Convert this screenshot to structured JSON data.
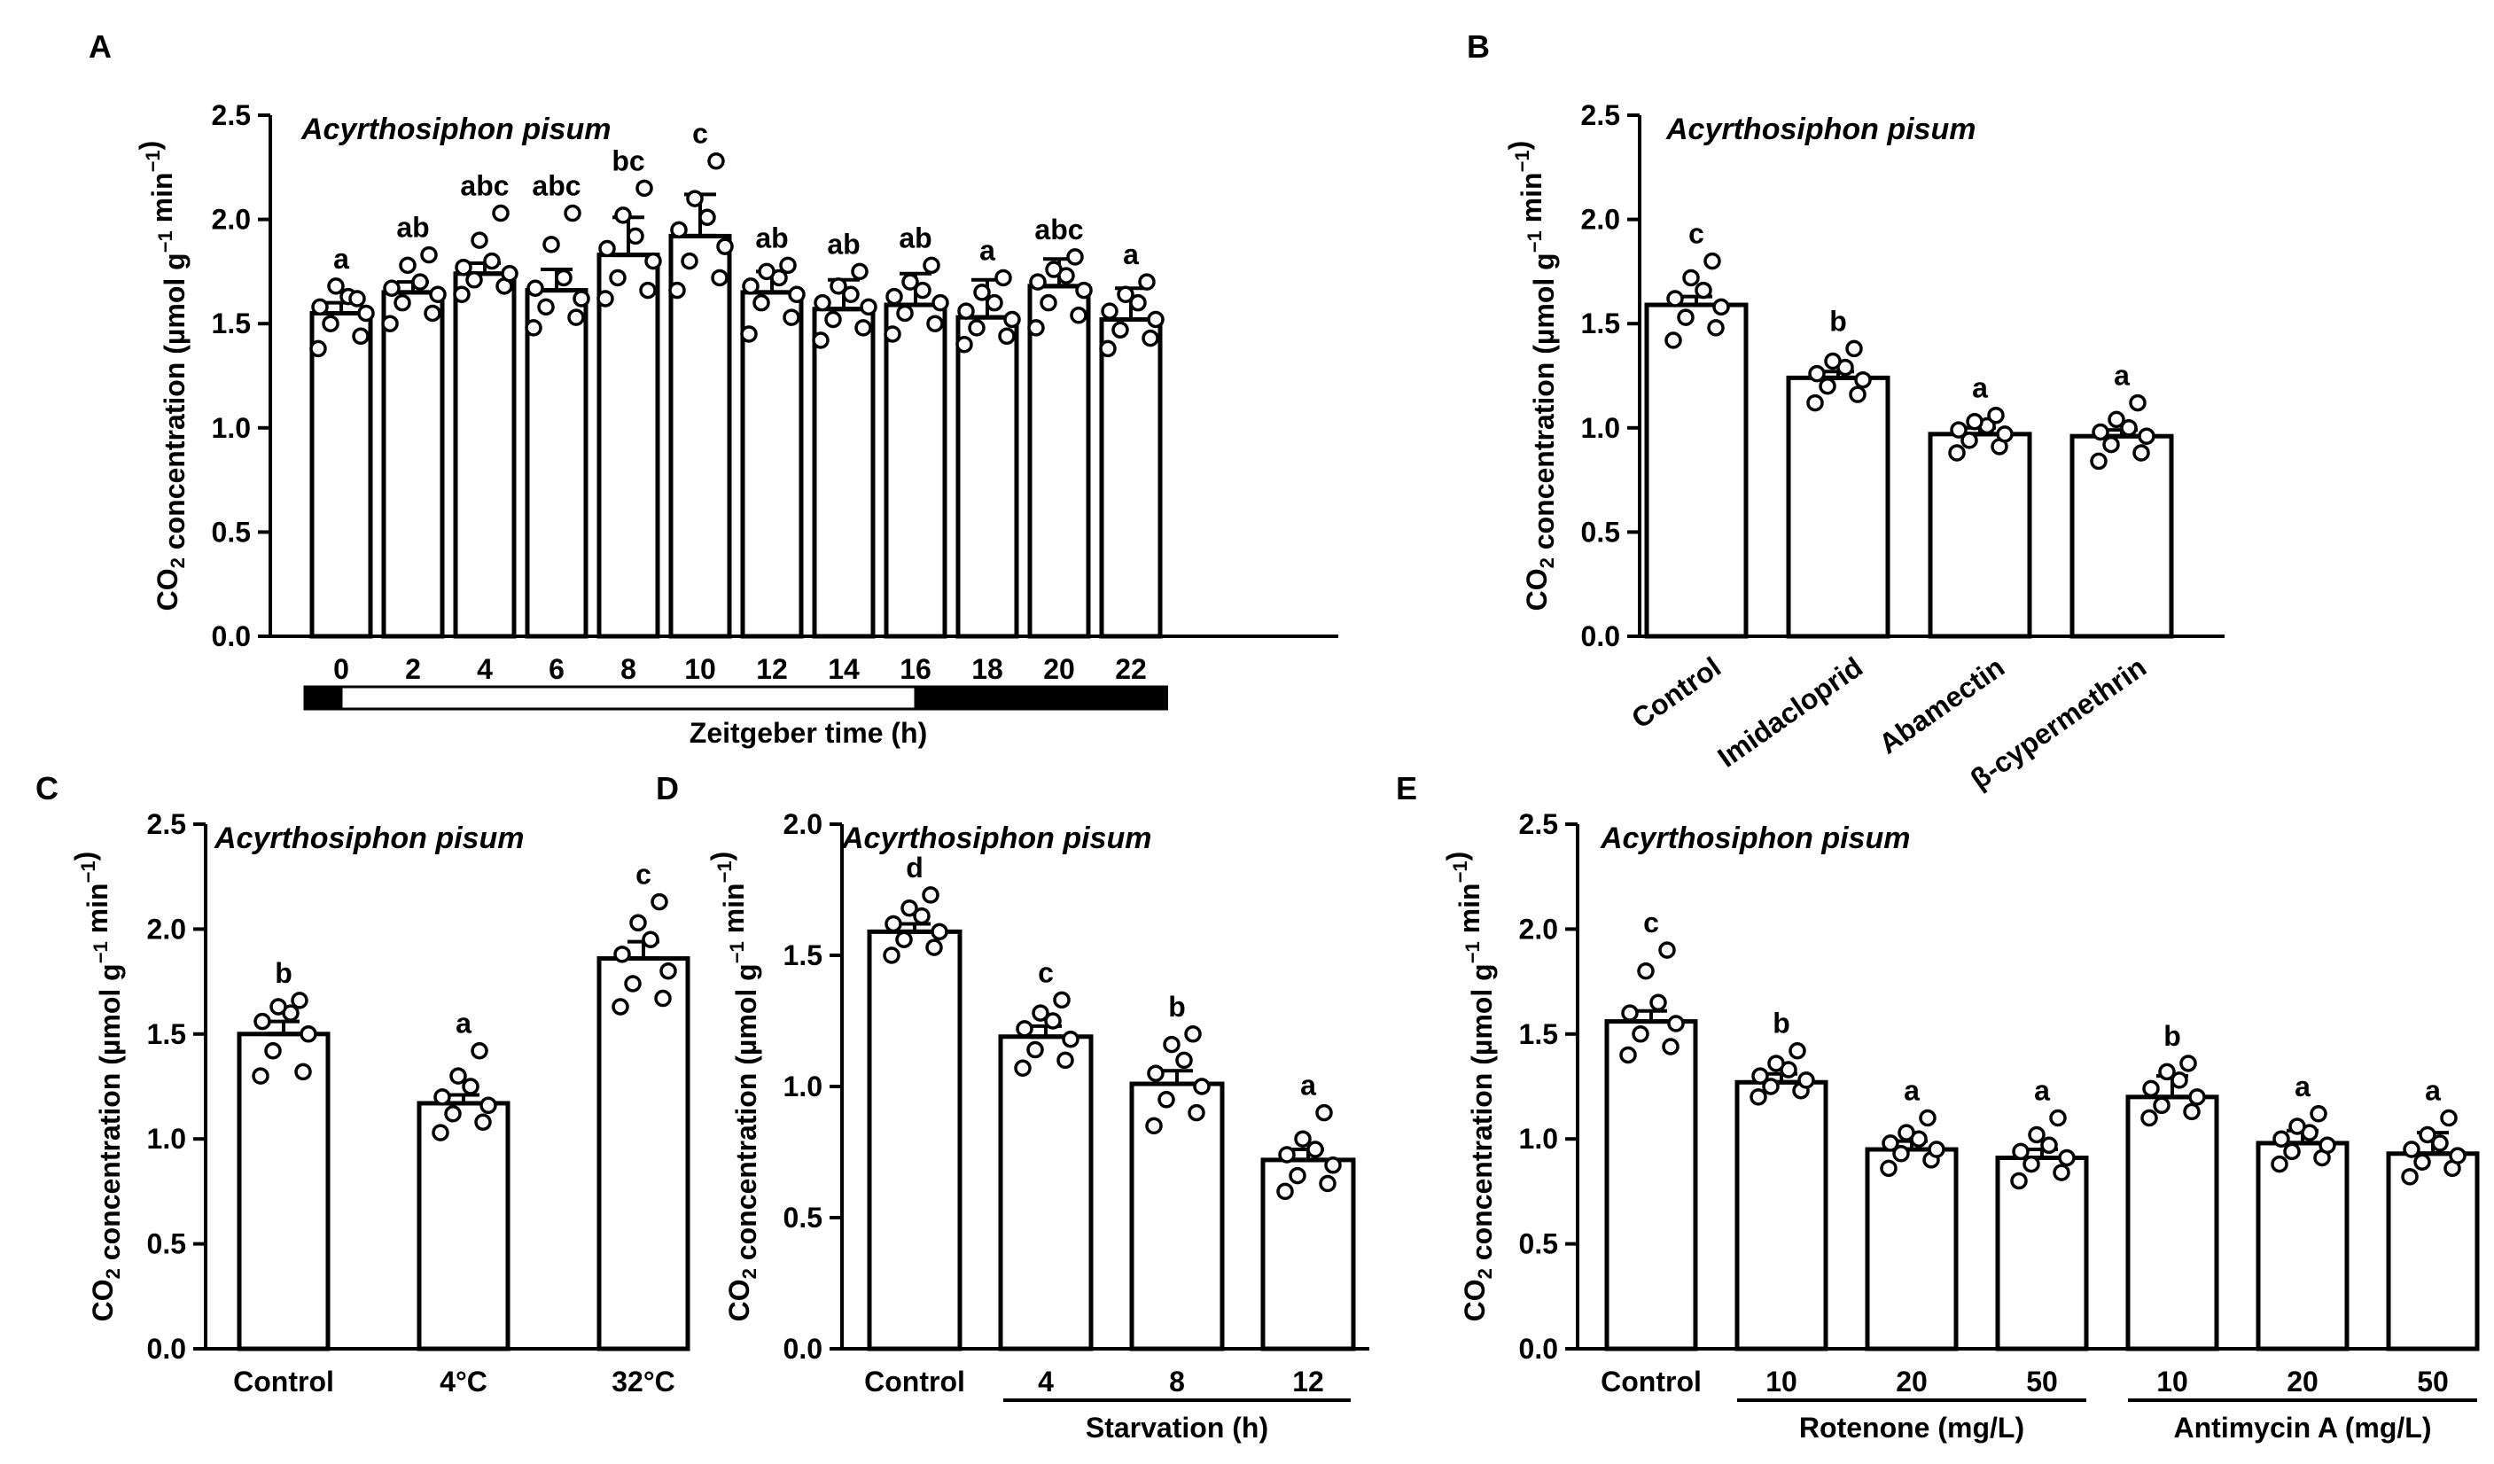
{
  "figure": {
    "species": "Acyrthosiphon pisum",
    "ylabel": {
      "main": "CO",
      "sub": "2",
      "rest": " concentration (µmol g",
      "sup": "−1",
      "mid": " min",
      "sup2": "−1",
      "end": ")"
    }
  },
  "chart_data": [
    {
      "panel": "A",
      "type": "bar",
      "title": "Acyrthosiphon pisum",
      "ylabel": "CO2 concentration (µmol g−1 min−1)",
      "xlabel": "Zeitgeber time (h)",
      "ylim": [
        0,
        2.5
      ],
      "yticks": [
        "0.0",
        "0.5",
        "1.0",
        "1.5",
        "2.0",
        "2.5"
      ],
      "categories": [
        "0",
        "2",
        "4",
        "6",
        "8",
        "10",
        "12",
        "14",
        "16",
        "18",
        "20",
        "22"
      ],
      "values": [
        1.55,
        1.65,
        1.74,
        1.66,
        1.83,
        1.92,
        1.65,
        1.57,
        1.59,
        1.53,
        1.68,
        1.52
      ],
      "errors": [
        0.05,
        0.05,
        0.05,
        0.1,
        0.18,
        0.2,
        0.1,
        0.14,
        0.15,
        0.18,
        0.13,
        0.15
      ],
      "letters": [
        "a",
        "ab",
        "abc",
        "abc",
        "bc",
        "c",
        "ab",
        "ab",
        "ab",
        "a",
        "abc",
        "a"
      ],
      "light_dark_bar": [
        {
          "from": -1,
          "to": 0,
          "state": "dark"
        },
        {
          "from": 0,
          "to": 16,
          "state": "light"
        },
        {
          "from": 16,
          "to": 23,
          "state": "dark"
        }
      ],
      "points": [
        [
          1.38,
          1.44,
          1.5,
          1.55,
          1.58,
          1.63,
          1.68,
          1.62
        ],
        [
          1.5,
          1.55,
          1.6,
          1.64,
          1.67,
          1.7,
          1.78,
          1.83
        ],
        [
          1.64,
          1.68,
          1.71,
          1.74,
          1.77,
          1.8,
          1.9,
          2.03
        ],
        [
          1.48,
          1.53,
          1.58,
          1.62,
          1.67,
          1.72,
          1.88,
          2.03
        ],
        [
          1.62,
          1.66,
          1.72,
          1.8,
          1.86,
          1.92,
          2.02,
          2.15
        ],
        [
          1.66,
          1.72,
          1.8,
          1.87,
          1.95,
          2.01,
          2.1,
          2.28
        ],
        [
          1.45,
          1.53,
          1.6,
          1.64,
          1.68,
          1.72,
          1.75,
          1.78
        ],
        [
          1.42,
          1.48,
          1.52,
          1.58,
          1.6,
          1.64,
          1.68,
          1.75
        ],
        [
          1.45,
          1.5,
          1.55,
          1.6,
          1.63,
          1.66,
          1.7,
          1.78
        ],
        [
          1.4,
          1.44,
          1.48,
          1.52,
          1.56,
          1.6,
          1.65,
          1.72
        ],
        [
          1.48,
          1.54,
          1.6,
          1.66,
          1.7,
          1.73,
          1.76,
          1.82
        ],
        [
          1.38,
          1.43,
          1.47,
          1.52,
          1.56,
          1.6,
          1.64,
          1.7
        ]
      ]
    },
    {
      "panel": "B",
      "type": "bar",
      "title": "Acyrthosiphon pisum",
      "ylabel": "CO2 concentration (µmol g−1 min−1)",
      "ylim": [
        0,
        2.5
      ],
      "yticks": [
        "0.0",
        "0.5",
        "1.0",
        "1.5",
        "2.0",
        "2.5"
      ],
      "categories": [
        "Control",
        "Imidacloprid",
        "Abamectin",
        "β-cypermethrin"
      ],
      "values": [
        1.59,
        1.24,
        0.97,
        0.96
      ],
      "errors": [
        0.04,
        0.03,
        0.03,
        0.03
      ],
      "letters": [
        "c",
        "b",
        "a",
        "a"
      ],
      "points": [
        [
          1.42,
          1.48,
          1.53,
          1.58,
          1.62,
          1.66,
          1.72,
          1.8
        ],
        [
          1.12,
          1.16,
          1.2,
          1.23,
          1.26,
          1.29,
          1.32,
          1.38
        ],
        [
          0.88,
          0.91,
          0.94,
          0.97,
          0.99,
          1.01,
          1.03,
          1.06
        ],
        [
          0.84,
          0.88,
          0.92,
          0.96,
          0.98,
          1.0,
          1.04,
          1.12
        ]
      ]
    },
    {
      "panel": "C",
      "type": "bar",
      "title": "Acyrthosiphon pisum",
      "ylabel": "CO2 concentration (µmol g−1 min−1)",
      "ylim": [
        0,
        2.5
      ],
      "yticks": [
        "0.0",
        "0.5",
        "1.0",
        "1.5",
        "2.0",
        "2.5"
      ],
      "categories": [
        "Control",
        "4°C",
        "32°C"
      ],
      "values": [
        1.5,
        1.17,
        1.86
      ],
      "errors": [
        0.06,
        0.04,
        0.08
      ],
      "letters": [
        "b",
        "a",
        "c"
      ],
      "points": [
        [
          1.3,
          1.32,
          1.42,
          1.5,
          1.56,
          1.6,
          1.63,
          1.66
        ],
        [
          1.03,
          1.08,
          1.12,
          1.16,
          1.2,
          1.25,
          1.3,
          1.42
        ],
        [
          1.63,
          1.67,
          1.74,
          1.8,
          1.88,
          1.95,
          2.03,
          2.13
        ]
      ]
    },
    {
      "panel": "D",
      "type": "bar",
      "title": "Acyrthosiphon pisum",
      "ylabel": "CO2 concentration (µmol g−1 min−1)",
      "xlabel": "Starvation (h)",
      "ylim": [
        0,
        2.0
      ],
      "yticks": [
        "0.0",
        "0.5",
        "1.0",
        "1.5",
        "2.0"
      ],
      "categories": [
        "Control",
        "4",
        "8",
        "12"
      ],
      "values": [
        1.59,
        1.19,
        1.01,
        0.72
      ],
      "errors": [
        0.03,
        0.04,
        0.05,
        0.04
      ],
      "letters": [
        "d",
        "c",
        "b",
        "a"
      ],
      "points": [
        [
          1.5,
          1.53,
          1.56,
          1.59,
          1.62,
          1.65,
          1.68,
          1.73
        ],
        [
          1.07,
          1.1,
          1.14,
          1.18,
          1.22,
          1.25,
          1.28,
          1.33
        ],
        [
          0.85,
          0.9,
          0.95,
          1.0,
          1.05,
          1.1,
          1.16,
          1.2
        ],
        [
          0.6,
          0.63,
          0.66,
          0.7,
          0.74,
          0.76,
          0.8,
          0.9
        ]
      ]
    },
    {
      "panel": "E",
      "type": "bar",
      "title": "Acyrthosiphon pisum",
      "ylabel": "CO2 concentration (µmol g−1 min−1)",
      "ylim": [
        0,
        2.5
      ],
      "yticks": [
        "0.0",
        "0.5",
        "1.0",
        "1.5",
        "2.0",
        "2.5"
      ],
      "categories": [
        "Control",
        "10",
        "20",
        "50",
        "10",
        "20",
        "50"
      ],
      "group_labels": [
        "Rotenone (mg/L)",
        "Antimycin A (mg/L)"
      ],
      "values": [
        1.56,
        1.27,
        0.95,
        0.91,
        1.2,
        0.98,
        0.93
      ],
      "errors": [
        0.05,
        0.04,
        0.04,
        0.04,
        0.1,
        0.06,
        0.1
      ],
      "letters": [
        "c",
        "b",
        "a",
        "a",
        "b",
        "a",
        "a"
      ],
      "points": [
        [
          1.4,
          1.44,
          1.5,
          1.55,
          1.6,
          1.65,
          1.8,
          1.9
        ],
        [
          1.2,
          1.23,
          1.25,
          1.28,
          1.3,
          1.33,
          1.36,
          1.42
        ],
        [
          0.86,
          0.9,
          0.93,
          0.95,
          0.98,
          1.0,
          1.03,
          1.1
        ],
        [
          0.8,
          0.84,
          0.88,
          0.91,
          0.94,
          0.97,
          1.02,
          1.1
        ],
        [
          1.1,
          1.13,
          1.16,
          1.2,
          1.24,
          1.28,
          1.32,
          1.36
        ],
        [
          0.88,
          0.91,
          0.94,
          0.97,
          1.0,
          1.03,
          1.06,
          1.12
        ],
        [
          0.82,
          0.86,
          0.89,
          0.92,
          0.95,
          0.98,
          1.02,
          1.1
        ]
      ]
    }
  ]
}
